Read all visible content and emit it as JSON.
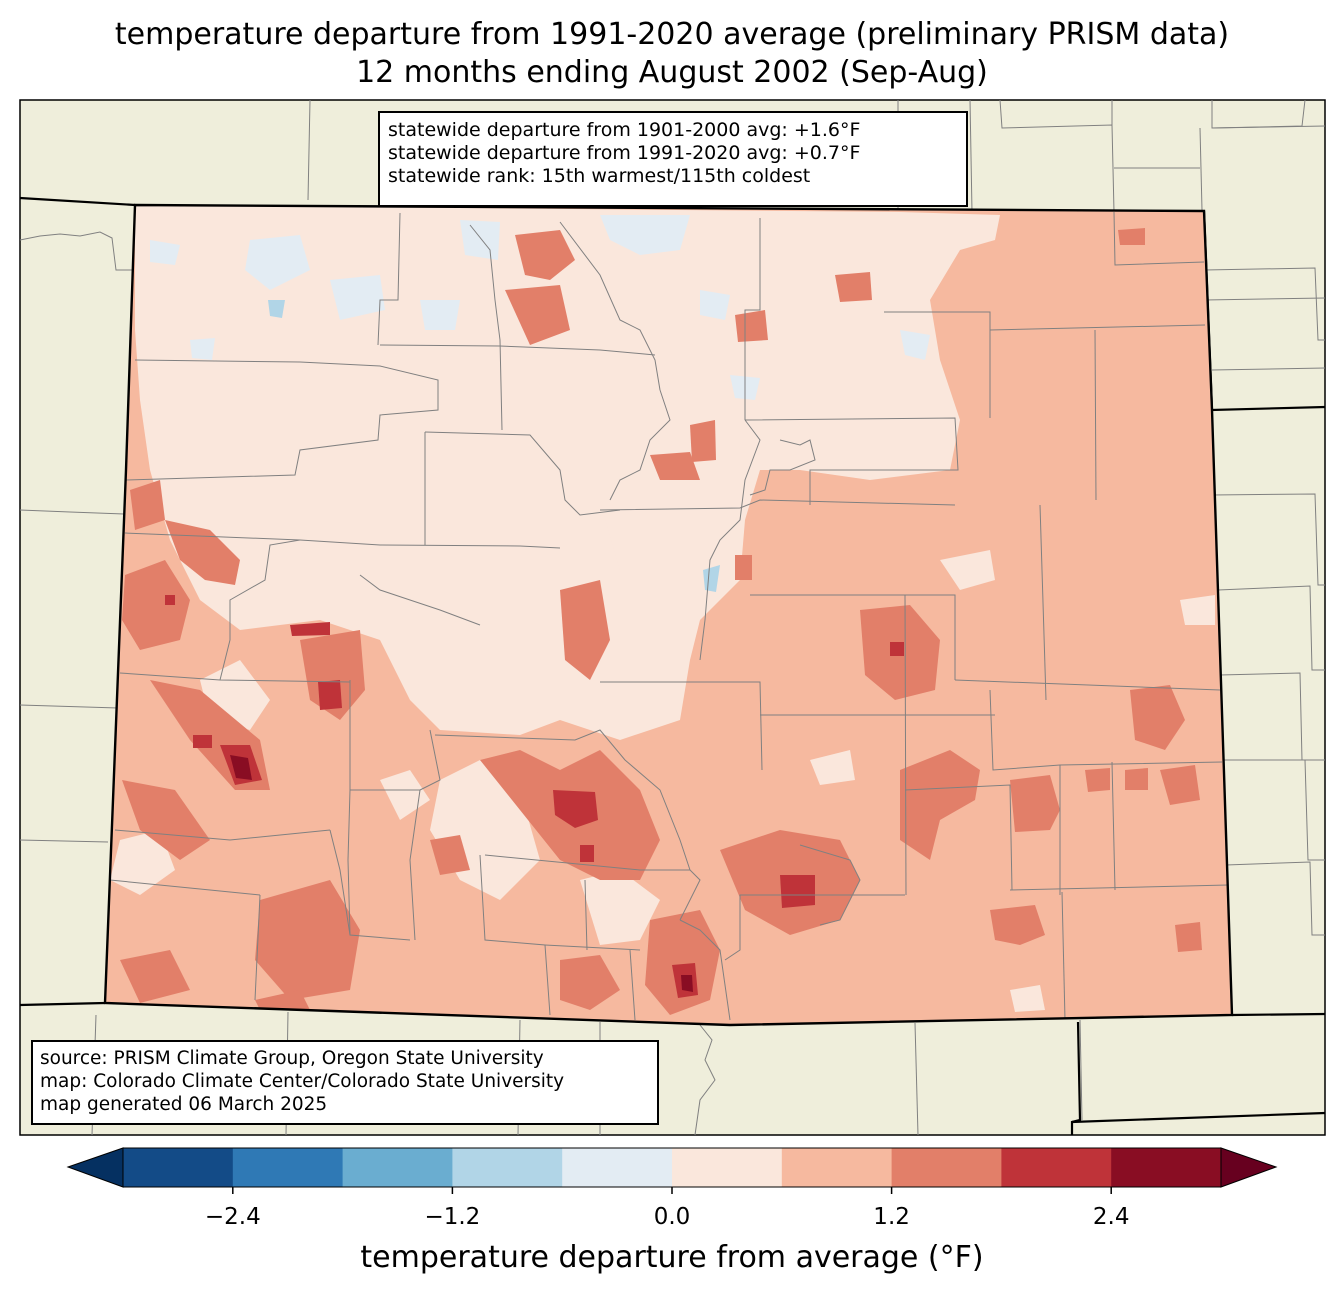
{
  "title": {
    "line1": "temperature departure from 1991-2020 average (preliminary PRISM data)",
    "line2": "12 months ending August 2002 (Sep-Aug)"
  },
  "stats": {
    "line1": "statewide departure from 1901-2000 avg: +1.6°F",
    "line2": "statewide departure from 1991-2020 avg: +0.7°F",
    "line3": "statewide rank: 15th warmest/115th coldest"
  },
  "source": {
    "line1": "source: PRISM Climate Group, Oregon State University",
    "line2": "map: Colorado Climate Center/Colorado State University",
    "line3": "map generated 06 March 2025"
  },
  "colorbar": {
    "label": "temperature departure from average (°F)",
    "ticks": [
      "−2.4",
      "−1.2",
      "0.0",
      "1.2",
      "2.4"
    ],
    "bins": [
      {
        "from": -3.0,
        "to": -2.4,
        "color": "#134b87"
      },
      {
        "from": -2.4,
        "to": -1.8,
        "color": "#2f79b5"
      },
      {
        "from": -1.8,
        "to": -1.2,
        "color": "#6aadd0"
      },
      {
        "from": -1.2,
        "to": -0.6,
        "color": "#b1d5e7"
      },
      {
        "from": -0.6,
        "to": 0.0,
        "color": "#e3ecf3"
      },
      {
        "from": 0.0,
        "to": 0.6,
        "color": "#fae7dc"
      },
      {
        "from": 0.6,
        "to": 1.2,
        "color": "#f6b99f"
      },
      {
        "from": 1.2,
        "to": 1.8,
        "color": "#e27f69"
      },
      {
        "from": 1.8,
        "to": 2.4,
        "color": "#bf3339"
      },
      {
        "from": 2.4,
        "to": 3.0,
        "color": "#890d23"
      }
    ],
    "under_color": "#053061",
    "over_color": "#67001f"
  },
  "colors": {
    "land": "#efeedb",
    "state_border": "#000000",
    "county_border": "#808080"
  }
}
